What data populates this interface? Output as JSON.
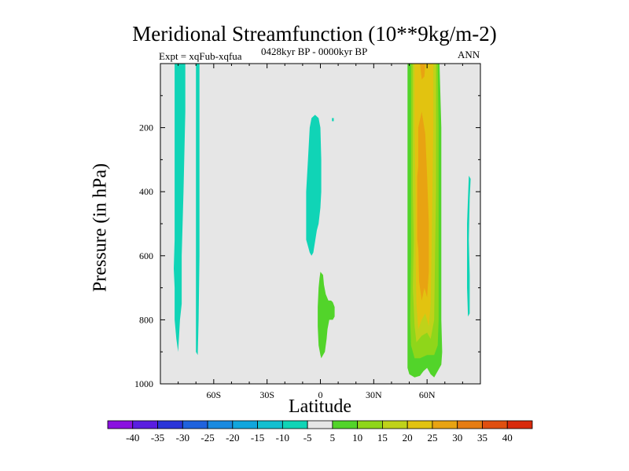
{
  "chart_data": {
    "type": "contour",
    "title": "Meridional Streamfunction (10**9kg/m-2)",
    "subtitle_left": "Expt = xqFub-xqfua",
    "subtitle_center": "0428kyr BP - 0000kyr BP",
    "subtitle_right": "ANN",
    "xlabel": "Latitude",
    "ylabel": "Pressure (in hPa)",
    "xlim": [
      -90,
      90
    ],
    "ylim": [
      1000,
      0
    ],
    "x_ticks": [
      {
        "value": -60,
        "label": "60S"
      },
      {
        "value": -30,
        "label": "30S"
      },
      {
        "value": 0,
        "label": "0"
      },
      {
        "value": 30,
        "label": "30N"
      },
      {
        "value": 60,
        "label": "60N"
      }
    ],
    "y_ticks": [
      {
        "value": 200,
        "label": "200"
      },
      {
        "value": 400,
        "label": "400"
      },
      {
        "value": 600,
        "label": "600"
      },
      {
        "value": 800,
        "label": "800"
      },
      {
        "value": 1000,
        "label": "1000"
      }
    ],
    "background_color": "#e6e6e6",
    "colorbar": {
      "labels": [
        "-40",
        "-35",
        "-30",
        "-25",
        "-20",
        "-15",
        "-10",
        "-5",
        "5",
        "10",
        "15",
        "20",
        "25",
        "30",
        "35",
        "40"
      ],
      "colors": [
        "#8a11e0",
        "#5a1ee0",
        "#2a35d8",
        "#1f62dd",
        "#1a8ae0",
        "#11a6dd",
        "#13bfd0",
        "#10d4b6",
        "#e6e6e6",
        "#52d42a",
        "#8fd61a",
        "#bfd21a",
        "#e2c310",
        "#e8a312",
        "#e67c12",
        "#e04f10",
        "#d82a0c"
      ]
    },
    "regions": [
      {
        "name": "negative-band-southern-polar-1",
        "fill": "#10d4b6",
        "points": [
          [
            -82,
            0
          ],
          [
            -76,
            0
          ],
          [
            -76,
            15
          ],
          [
            -77,
            40
          ],
          [
            -78,
            60
          ],
          [
            -78,
            75
          ],
          [
            -79,
            80
          ],
          [
            -80,
            90
          ],
          [
            -81,
            86
          ],
          [
            -82,
            80
          ],
          [
            -82,
            70
          ],
          [
            -82.5,
            64
          ],
          [
            -82,
            55
          ],
          [
            -82,
            0
          ]
        ]
      },
      {
        "name": "negative-band-southern-polar-2",
        "fill": "#10d4b6",
        "points": [
          [
            -70,
            0
          ],
          [
            -68,
            0
          ],
          [
            -68,
            30
          ],
          [
            -68,
            60
          ],
          [
            -68.5,
            80
          ],
          [
            -69,
            91
          ],
          [
            -70,
            90
          ],
          [
            -70,
            60
          ],
          [
            -70,
            0
          ]
        ]
      },
      {
        "name": "negative-region-tropical-upper",
        "fill": "#10d4b6",
        "points": [
          [
            -3,
            16
          ],
          [
            -1,
            17
          ],
          [
            0,
            20
          ],
          [
            0.5,
            30
          ],
          [
            0.5,
            40
          ],
          [
            0,
            45
          ],
          [
            -1,
            50
          ],
          [
            -2,
            52
          ],
          [
            -4,
            59
          ],
          [
            -5,
            60
          ],
          [
            -6,
            59
          ],
          [
            -7,
            57
          ],
          [
            -8,
            55
          ],
          [
            -8,
            40
          ],
          [
            -7,
            30
          ],
          [
            -6,
            20
          ],
          [
            -5,
            17
          ],
          [
            -3,
            16
          ]
        ]
      },
      {
        "name": "negative-patch-tropical-small",
        "fill": "#10d4b6",
        "points": [
          [
            6.5,
            17
          ],
          [
            7.5,
            17
          ],
          [
            7.5,
            18
          ],
          [
            6.5,
            18
          ],
          [
            6.5,
            17
          ]
        ]
      },
      {
        "name": "negative-band-northern-polar",
        "fill": "#10d4b6",
        "points": [
          [
            83.5,
            35
          ],
          [
            84.5,
            36
          ],
          [
            84,
            42
          ],
          [
            83.5,
            55
          ],
          [
            84,
            66
          ],
          [
            84,
            78
          ],
          [
            83,
            79
          ],
          [
            82.5,
            70
          ],
          [
            82.5,
            50
          ],
          [
            83,
            42
          ],
          [
            83.5,
            35
          ]
        ]
      },
      {
        "name": "positive-region-tropical-lower",
        "fill": "#52d42a",
        "points": [
          [
            0,
            65
          ],
          [
            1.5,
            66
          ],
          [
            2,
            69
          ],
          [
            3,
            72
          ],
          [
            4.5,
            74
          ],
          [
            6,
            74
          ],
          [
            7,
            74.5
          ],
          [
            8,
            76
          ],
          [
            8,
            79
          ],
          [
            7,
            80
          ],
          [
            5,
            80
          ],
          [
            4,
            83
          ],
          [
            3.5,
            86
          ],
          [
            3,
            88
          ],
          [
            2.5,
            90
          ],
          [
            1.5,
            91
          ],
          [
            0.5,
            92
          ],
          [
            0,
            91
          ],
          [
            -1,
            88
          ],
          [
            -1.5,
            82
          ],
          [
            -1.5,
            76
          ],
          [
            -1,
            70
          ],
          [
            -0.5,
            67
          ],
          [
            0,
            65
          ]
        ]
      },
      {
        "name": "positive-band-northern-midlat-outer",
        "fill": "#52d42a",
        "points": [
          [
            49,
            0
          ],
          [
            67,
            0
          ],
          [
            68,
            20
          ],
          [
            68,
            40
          ],
          [
            68,
            60
          ],
          [
            68,
            80
          ],
          [
            68.5,
            90
          ],
          [
            68,
            94
          ],
          [
            66,
            96
          ],
          [
            64,
            98
          ],
          [
            62,
            97
          ],
          [
            60,
            95
          ],
          [
            58,
            96
          ],
          [
            56,
            97.5
          ],
          [
            53,
            98
          ],
          [
            50,
            97
          ],
          [
            49,
            95
          ],
          [
            49,
            80
          ],
          [
            49,
            60
          ],
          [
            49,
            40
          ],
          [
            49,
            20
          ],
          [
            49,
            0
          ]
        ]
      },
      {
        "name": "positive-band-northern-midlat-10",
        "fill": "#8fd61a",
        "points": [
          [
            51,
            0
          ],
          [
            66,
            0
          ],
          [
            66.5,
            20
          ],
          [
            66.5,
            40
          ],
          [
            66.5,
            60
          ],
          [
            66.5,
            80
          ],
          [
            66,
            88
          ],
          [
            64,
            91
          ],
          [
            60,
            91
          ],
          [
            56,
            92
          ],
          [
            53,
            92
          ],
          [
            51,
            88
          ],
          [
            50.5,
            80
          ],
          [
            51,
            60
          ],
          [
            51,
            40
          ],
          [
            51,
            20
          ],
          [
            51,
            0
          ]
        ]
      },
      {
        "name": "positive-band-northern-midlat-15",
        "fill": "#bfd21a",
        "points": [
          [
            52,
            0
          ],
          [
            65,
            0
          ],
          [
            65,
            20
          ],
          [
            65,
            40
          ],
          [
            64.5,
            60
          ],
          [
            64,
            80
          ],
          [
            62,
            86
          ],
          [
            60,
            84
          ],
          [
            57,
            85
          ],
          [
            54,
            87
          ],
          [
            53,
            82
          ],
          [
            52,
            70
          ],
          [
            52.5,
            55
          ],
          [
            52,
            40
          ],
          [
            52,
            20
          ],
          [
            52,
            0
          ]
        ]
      },
      {
        "name": "positive-band-northern-midlat-20",
        "fill": "#e2c310",
        "points": [
          [
            53,
            0
          ],
          [
            63.5,
            0
          ],
          [
            63.5,
            20
          ],
          [
            63,
            40
          ],
          [
            62.5,
            60
          ],
          [
            62,
            75
          ],
          [
            61,
            82
          ],
          [
            59,
            78
          ],
          [
            57,
            80
          ],
          [
            55,
            83
          ],
          [
            54,
            75
          ],
          [
            53.5,
            60
          ],
          [
            53.5,
            40
          ],
          [
            53,
            20
          ],
          [
            53,
            0
          ]
        ]
      },
      {
        "name": "positive-band-northern-midlat-25",
        "fill": "#e8a312",
        "points": [
          [
            55,
            20
          ],
          [
            57,
            15
          ],
          [
            59,
            22
          ],
          [
            60,
            35
          ],
          [
            61,
            50
          ],
          [
            61,
            65
          ],
          [
            60,
            73
          ],
          [
            58.5,
            70
          ],
          [
            57,
            74
          ],
          [
            55.5,
            68
          ],
          [
            55,
            55
          ],
          [
            55,
            40
          ],
          [
            55,
            20
          ]
        ]
      },
      {
        "name": "positive-core-left",
        "fill": "#e8a312",
        "points": [
          [
            54.5,
            35
          ],
          [
            55.5,
            30
          ],
          [
            56,
            45
          ],
          [
            55.5,
            60
          ],
          [
            54.5,
            55
          ],
          [
            54.5,
            35
          ]
        ]
      },
      {
        "name": "positive-core-top",
        "fill": "#e8a312",
        "points": [
          [
            56,
            0
          ],
          [
            59,
            0
          ],
          [
            58.5,
            4
          ],
          [
            57,
            5
          ],
          [
            56,
            0
          ]
        ]
      }
    ]
  }
}
